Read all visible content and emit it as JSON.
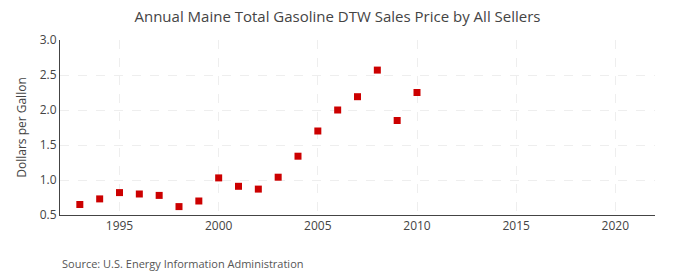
{
  "chart_data": {
    "type": "scatter",
    "title": "Annual Maine Total Gasoline DTW Sales Price by All Sellers",
    "ylabel": "Dollars per Gallon",
    "annotation": "Source: U.S. Energy Information Administration",
    "x": [
      1993,
      1994,
      1995,
      1996,
      1997,
      1998,
      1999,
      2000,
      2001,
      2002,
      2003,
      2004,
      2005,
      2006,
      2007,
      2008,
      2009,
      2010
    ],
    "values": [
      0.65,
      0.73,
      0.82,
      0.8,
      0.78,
      0.62,
      0.7,
      1.03,
      0.91,
      0.87,
      1.04,
      1.34,
      1.7,
      2.0,
      2.19,
      2.57,
      1.85,
      2.25
    ],
    "color": "#cc0000",
    "marker": "square",
    "xlim": [
      1992,
      2022
    ],
    "ylim": [
      0.5,
      3.0
    ],
    "xticks": [
      1995,
      2000,
      2005,
      2010,
      2015,
      2020
    ],
    "yticks": [
      0.5,
      {
        "value": 1,
        "label": "1.0"
      },
      1.5,
      {
        "value": 2,
        "label": "2.0"
      },
      2.5,
      {
        "value": 3,
        "label": "3.0"
      }
    ],
    "grid": true
  }
}
